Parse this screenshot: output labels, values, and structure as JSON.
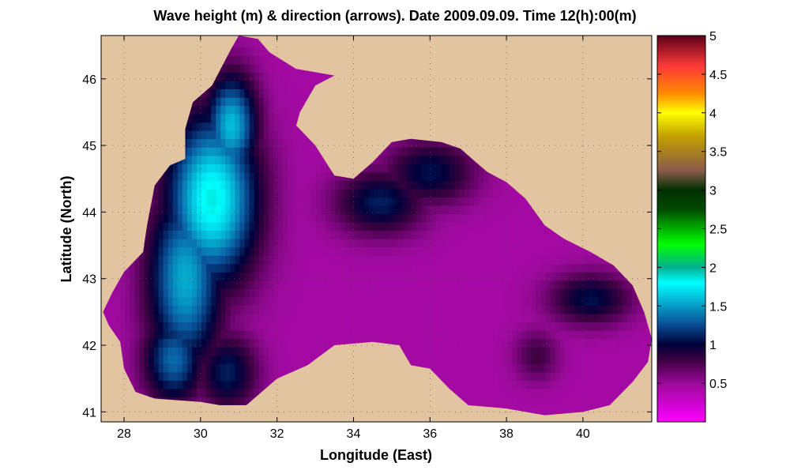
{
  "title": "Wave height (m) & direction (arrows). Date 2009.09.09. Time 12(h):00(m)",
  "chart_data": {
    "type": "heatmap",
    "title": "Wave height (m) & direction (arrows). Date 2009.09.09. Time 12(h):00(m)",
    "xlabel": "Longitude (East)",
    "ylabel": "Latitude (North)",
    "xlim": [
      27.4,
      41.8
    ],
    "ylim": [
      40.85,
      46.65
    ],
    "x_ticks": [
      28,
      30,
      32,
      34,
      36,
      38,
      40
    ],
    "y_ticks": [
      41,
      42,
      43,
      44,
      45,
      46
    ],
    "grid": "dotted",
    "land_color": "#e3c4a0",
    "colorbar": {
      "range": [
        0,
        5
      ],
      "ticks": [
        0.5,
        1,
        1.5,
        2,
        2.5,
        3,
        3.5,
        4,
        4.5,
        5
      ],
      "tick_labels": [
        "0.5",
        "1",
        "1.5",
        "2",
        "2.5",
        "3",
        "3.5",
        "4",
        "4.5",
        "5"
      ],
      "stops": [
        {
          "v": 0.0,
          "color": "#ff00ff"
        },
        {
          "v": 0.5,
          "color": "#9a0a9a"
        },
        {
          "v": 0.8,
          "color": "#3c0040"
        },
        {
          "v": 1.0,
          "color": "#00003a"
        },
        {
          "v": 1.3,
          "color": "#0a5aa0"
        },
        {
          "v": 1.8,
          "color": "#00ffff"
        },
        {
          "v": 2.0,
          "color": "#00b090"
        },
        {
          "v": 2.3,
          "color": "#00ff00"
        },
        {
          "v": 2.75,
          "color": "#004a00"
        },
        {
          "v": 3.0,
          "color": "#003000"
        },
        {
          "v": 3.25,
          "color": "#8a5a4a"
        },
        {
          "v": 3.7,
          "color": "#c4a000"
        },
        {
          "v": 4.0,
          "color": "#ffff00"
        },
        {
          "v": 4.25,
          "color": "#ff8a00"
        },
        {
          "v": 4.6,
          "color": "#ff3a3a"
        },
        {
          "v": 5.0,
          "color": "#5a0018"
        }
      ]
    },
    "sea_outline": [
      [
        27.45,
        42.5
      ],
      [
        27.6,
        42.3
      ],
      [
        27.9,
        42.05
      ],
      [
        28.0,
        41.65
      ],
      [
        28.3,
        41.3
      ],
      [
        28.8,
        41.2
      ],
      [
        29.3,
        41.18
      ],
      [
        30.0,
        41.15
      ],
      [
        30.5,
        41.1
      ],
      [
        31.2,
        41.1
      ],
      [
        32.0,
        41.5
      ],
      [
        32.8,
        41.7
      ],
      [
        33.5,
        42.0
      ],
      [
        34.5,
        42.05
      ],
      [
        35.2,
        42.0
      ],
      [
        35.5,
        41.7
      ],
      [
        36.0,
        41.65
      ],
      [
        36.5,
        41.35
      ],
      [
        37.0,
        41.1
      ],
      [
        38.0,
        41.05
      ],
      [
        39.0,
        40.95
      ],
      [
        40.0,
        41.0
      ],
      [
        40.7,
        41.1
      ],
      [
        41.3,
        41.45
      ],
      [
        41.7,
        41.75
      ],
      [
        41.8,
        42.1
      ],
      [
        41.6,
        42.5
      ],
      [
        41.3,
        42.9
      ],
      [
        40.8,
        43.2
      ],
      [
        40.2,
        43.4
      ],
      [
        39.5,
        43.6
      ],
      [
        39.0,
        43.8
      ],
      [
        38.5,
        44.2
      ],
      [
        38.0,
        44.45
      ],
      [
        37.5,
        44.6
      ],
      [
        37.2,
        44.75
      ],
      [
        36.8,
        44.95
      ],
      [
        36.3,
        45.05
      ],
      [
        35.5,
        45.1
      ],
      [
        35.0,
        45.05
      ],
      [
        34.5,
        44.75
      ],
      [
        34.0,
        44.5
      ],
      [
        33.5,
        44.55
      ],
      [
        33.0,
        45.0
      ],
      [
        32.5,
        45.3
      ],
      [
        32.6,
        45.5
      ],
      [
        33.0,
        45.9
      ],
      [
        33.5,
        46.05
      ],
      [
        32.5,
        46.15
      ],
      [
        31.8,
        46.4
      ],
      [
        31.5,
        46.6
      ],
      [
        31.0,
        46.65
      ],
      [
        30.8,
        46.45
      ],
      [
        30.3,
        45.9
      ],
      [
        29.8,
        45.65
      ],
      [
        29.6,
        45.25
      ],
      [
        29.6,
        44.8
      ],
      [
        29.2,
        44.7
      ],
      [
        28.8,
        44.4
      ],
      [
        28.6,
        43.8
      ],
      [
        28.5,
        43.4
      ],
      [
        28.0,
        43.1
      ],
      [
        27.7,
        42.8
      ]
    ],
    "wave_blobs": [
      {
        "lon": 30.3,
        "lat": 44.2,
        "peak": 1.85,
        "rx": 1.2,
        "ry": 1.3
      },
      {
        "lon": 29.6,
        "lat": 43.0,
        "peak": 1.55,
        "rx": 1.0,
        "ry": 1.4
      },
      {
        "lon": 30.8,
        "lat": 45.3,
        "peak": 1.6,
        "rx": 0.7,
        "ry": 0.8
      },
      {
        "lon": 29.3,
        "lat": 41.8,
        "peak": 1.35,
        "rx": 0.8,
        "ry": 0.7
      },
      {
        "lon": 30.7,
        "lat": 41.6,
        "peak": 1.1,
        "rx": 0.8,
        "ry": 0.6
      },
      {
        "lon": 34.7,
        "lat": 44.15,
        "peak": 1.1,
        "rx": 1.2,
        "ry": 0.5
      },
      {
        "lon": 36.0,
        "lat": 44.6,
        "peak": 1.05,
        "rx": 1.2,
        "ry": 0.5
      },
      {
        "lon": 40.2,
        "lat": 42.7,
        "peak": 1.05,
        "rx": 1.1,
        "ry": 0.4
      },
      {
        "lon": 38.8,
        "lat": 41.85,
        "peak": 0.8,
        "rx": 0.6,
        "ry": 0.4
      }
    ],
    "base_wave_height": 0.45
  }
}
